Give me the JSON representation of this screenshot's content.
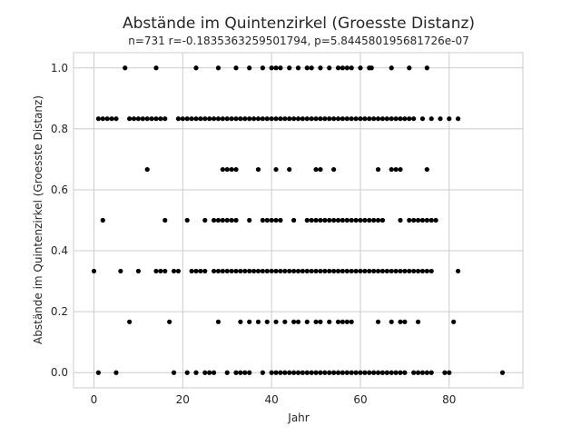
{
  "chart_data": {
    "type": "scatter",
    "title": "Abstände im Quintenzirkel (Groesste Distanz)",
    "subtitle": "n=731 r=-0.1835363259501794, p=5.844580195681726e-07",
    "xlabel": "Jahr",
    "ylabel": "Abstände im Quintenzirkel (Groesste Distanz)",
    "xlim": [
      -4.6,
      96.6
    ],
    "ylim": [
      -0.05,
      1.05
    ],
    "xticks": [
      0,
      20,
      40,
      60,
      80
    ],
    "yticks": [
      0.0,
      0.2,
      0.4,
      0.6,
      0.8,
      1.0
    ],
    "xtick_labels": [
      "0",
      "20",
      "40",
      "60",
      "80"
    ],
    "ytick_labels": [
      "0.0",
      "0.2",
      "0.4",
      "0.6",
      "0.8",
      "1.0"
    ],
    "grid": true,
    "marker_color": "#000000",
    "grid_color": "#cccccc",
    "points": [
      {
        "y": 1.0,
        "x": [
          7,
          14,
          23,
          28,
          32,
          35,
          38,
          40,
          41,
          42,
          44,
          46,
          48,
          49,
          51,
          53,
          55,
          56,
          57,
          58,
          60,
          62,
          62.5,
          67,
          71,
          75
        ]
      },
      {
        "y": 0.8333,
        "x": [
          1,
          2,
          3,
          4,
          5,
          8,
          9,
          10,
          11,
          12,
          13,
          14,
          15,
          16,
          19,
          20,
          21,
          22,
          23,
          24,
          25,
          26,
          27,
          28,
          29,
          30,
          31,
          32,
          33,
          34,
          35,
          36,
          37,
          38,
          39,
          40,
          41,
          42,
          43,
          44,
          45,
          46,
          47,
          48,
          49,
          50,
          51,
          52,
          53,
          54,
          55,
          56,
          57,
          58,
          59,
          60,
          61,
          62,
          63,
          64,
          65,
          66,
          67,
          68,
          69,
          70,
          71,
          72,
          74,
          76,
          78,
          80,
          82
        ]
      },
      {
        "y": 0.6667,
        "x": [
          12,
          29,
          30,
          31,
          32,
          37,
          41,
          44,
          50,
          51,
          54,
          64,
          67,
          68,
          69,
          75
        ]
      },
      {
        "y": 0.5,
        "x": [
          2,
          16,
          21,
          25,
          27,
          28,
          29,
          30,
          31,
          32,
          35,
          38,
          39,
          40,
          41,
          42,
          45,
          48,
          49,
          50,
          51,
          52,
          53,
          54,
          55,
          56,
          57,
          58,
          59,
          60,
          61,
          62,
          63,
          64,
          65,
          69,
          71,
          72,
          73,
          74,
          75,
          76,
          77
        ]
      },
      {
        "y": 0.3333,
        "x": [
          0,
          6,
          10,
          14,
          15,
          16,
          18,
          19,
          22,
          23,
          24,
          25,
          27,
          28,
          29,
          30,
          31,
          32,
          33,
          34,
          35,
          36,
          37,
          38,
          39,
          40,
          41,
          42,
          43,
          44,
          45,
          46,
          47,
          48,
          49,
          50,
          51,
          52,
          53,
          54,
          55,
          56,
          57,
          58,
          59,
          60,
          61,
          62,
          63,
          64,
          65,
          66,
          67,
          68,
          69,
          70,
          71,
          72,
          73,
          74,
          75,
          76,
          82
        ]
      },
      {
        "y": 0.1667,
        "x": [
          8,
          17,
          28,
          33,
          35,
          37,
          39,
          41,
          43,
          45,
          46,
          48,
          50,
          51,
          53,
          55,
          56,
          57,
          58,
          64,
          67,
          69,
          70,
          73,
          81
        ]
      },
      {
        "y": 0.0,
        "x": [
          1,
          5,
          18,
          21,
          23,
          25,
          26,
          27,
          30,
          32,
          33,
          34,
          35,
          38,
          40,
          41,
          42,
          43,
          44,
          45,
          46,
          47,
          48,
          49,
          50,
          51,
          52,
          53,
          54,
          55,
          56,
          57,
          58,
          59,
          60,
          61,
          62,
          63,
          64,
          65,
          66,
          67,
          68,
          69,
          70,
          72,
          73,
          74,
          75,
          76,
          79,
          80,
          92
        ]
      }
    ]
  }
}
